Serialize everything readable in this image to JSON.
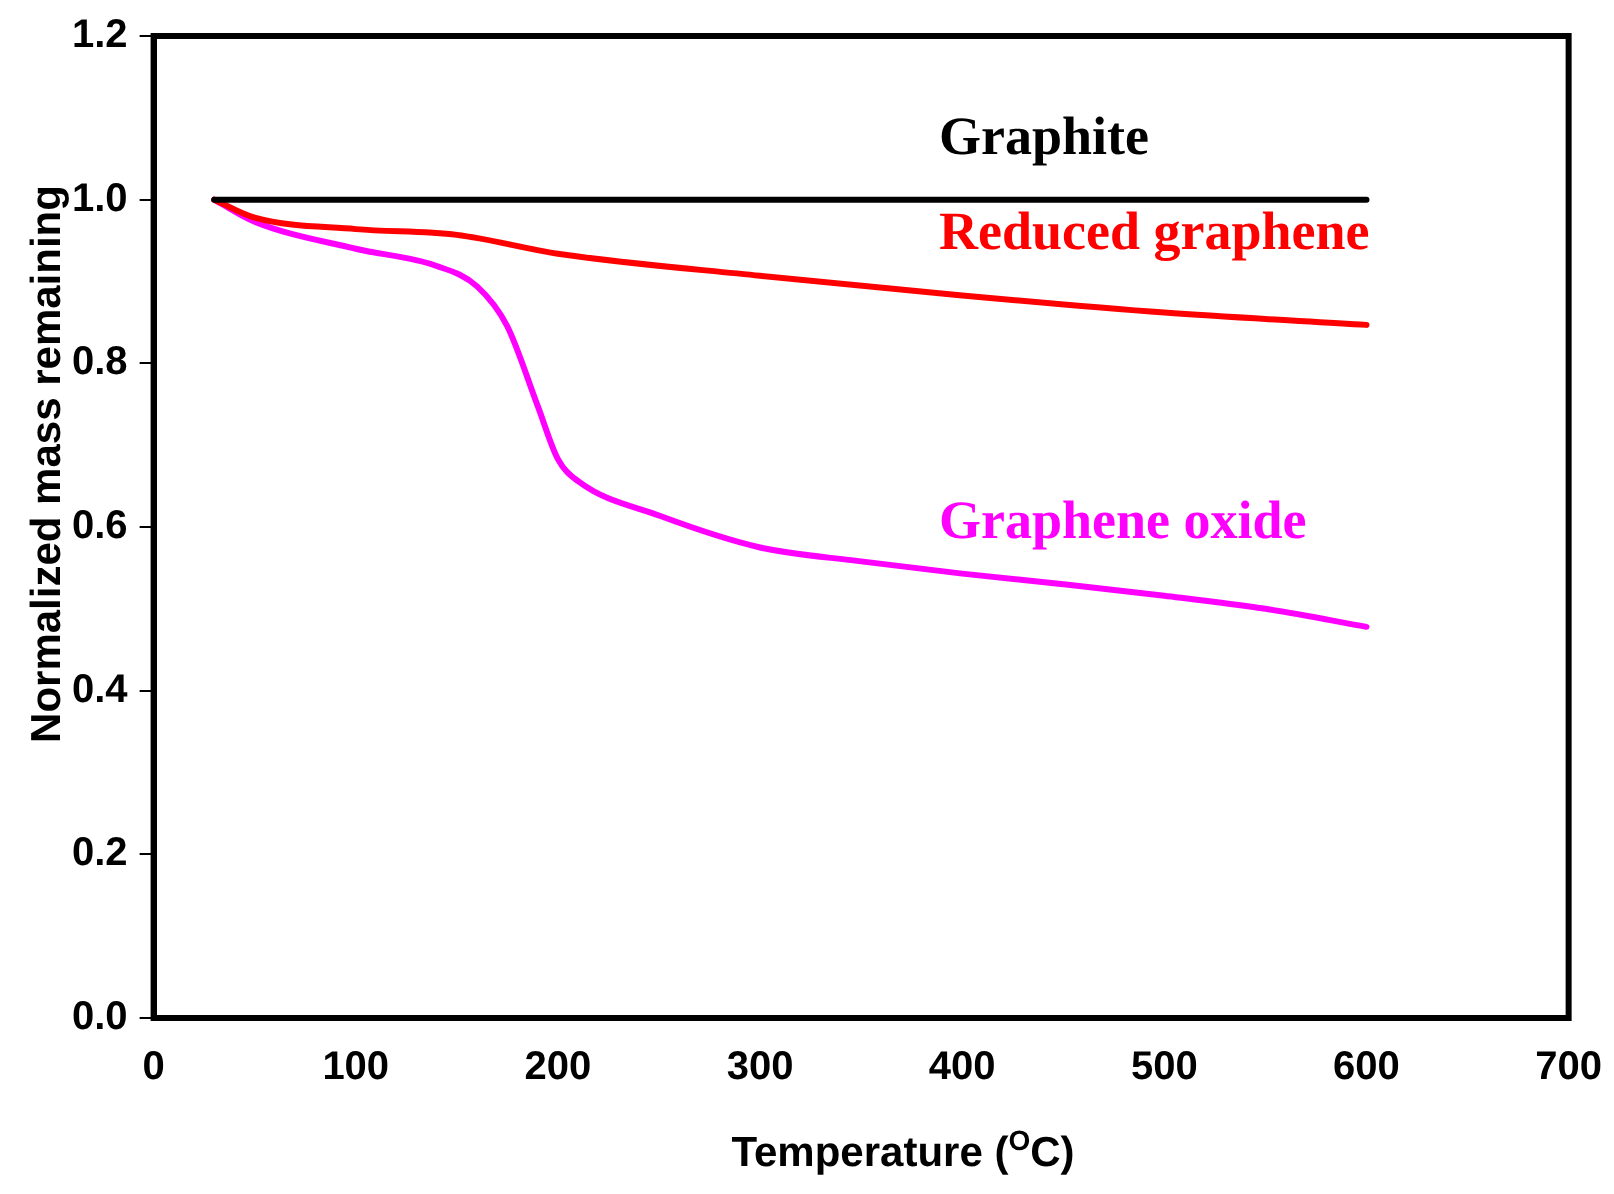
{
  "chart_data": {
    "type": "line",
    "xlabel": "Temperature ($^{O}$C)",
    "ylabel": "Normalized mass remaining",
    "xlim": [
      0,
      700
    ],
    "xticks": [
      0,
      100,
      200,
      300,
      400,
      500,
      600,
      700
    ],
    "ylim": [
      0,
      1.2
    ],
    "yticks": [
      {
        "value": 0,
        "label": "0.0"
      },
      {
        "value": 0.2,
        "label": "0.2"
      },
      {
        "value": 0.4,
        "label": "0.4"
      },
      {
        "value": 0.6,
        "label": "0.6"
      },
      {
        "value": 0.8,
        "label": "0.8"
      },
      {
        "value": 1,
        "label": "1.0"
      },
      {
        "value": 1.2,
        "label": "1.2"
      }
    ],
    "grid": false,
    "legend": false,
    "marker": "none",
    "line_style": "solid",
    "series": [
      {
        "name": "Graphite",
        "color": "#000000",
        "x": [
          30,
          600
        ],
        "values": [
          1.0,
          1.0
        ]
      },
      {
        "name": "Reduced graphene",
        "color": "#ff0000",
        "x": [
          30,
          50,
          100,
          150,
          200,
          300,
          400,
          500,
          600
        ],
        "values": [
          1.0,
          0.978,
          0.964,
          0.957,
          0.934,
          0.907,
          0.883,
          0.862,
          0.847
        ]
      },
      {
        "name": "Graphene oxide",
        "color": "#ff00ff",
        "x": [
          30,
          50,
          100,
          140,
          160,
          175,
          190,
          200,
          210,
          250,
          300,
          350,
          400,
          450,
          500,
          550,
          600
        ],
        "values": [
          1.0,
          0.973,
          0.94,
          0.919,
          0.894,
          0.845,
          0.748,
          0.683,
          0.656,
          0.614,
          0.575,
          0.558,
          0.543,
          0.53,
          0.516,
          0.5,
          0.478
        ]
      }
    ]
  }
}
